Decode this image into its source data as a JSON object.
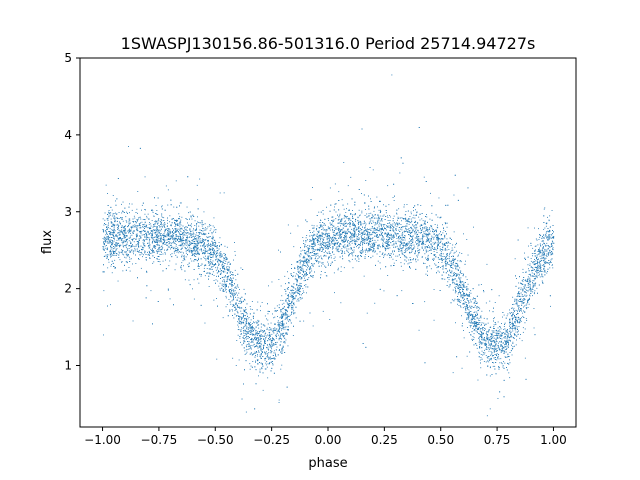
{
  "chart_data": {
    "type": "scatter",
    "title": "1SWASPJ130156.86-501316.0 Period 25714.94727s",
    "xlabel": "phase",
    "ylabel": "flux",
    "xlim": [
      -1.1,
      1.1
    ],
    "ylim": [
      0.2,
      5.0
    ],
    "x_ticks": [
      {
        "value": -1.0,
        "label": "−1.00"
      },
      {
        "value": -0.75,
        "label": "−0.75"
      },
      {
        "value": -0.5,
        "label": "−0.50"
      },
      {
        "value": -0.25,
        "label": "−0.25"
      },
      {
        "value": 0.0,
        "label": "0.00"
      },
      {
        "value": 0.25,
        "label": "0.25"
      },
      {
        "value": 0.5,
        "label": "0.50"
      },
      {
        "value": 0.75,
        "label": "0.75"
      },
      {
        "value": 1.0,
        "label": "1.00"
      }
    ],
    "y_ticks": [
      {
        "value": 1,
        "label": "1"
      },
      {
        "value": 2,
        "label": "2"
      },
      {
        "value": 3,
        "label": "3"
      },
      {
        "value": 4,
        "label": "4"
      },
      {
        "value": 5,
        "label": "5"
      }
    ],
    "series": [
      {
        "color": "#1f77b4",
        "x": [
          -1.0,
          -0.9,
          -0.8,
          -0.7,
          -0.6,
          -0.5,
          -0.45,
          -0.4,
          -0.35,
          -0.3,
          -0.25,
          -0.2,
          -0.15,
          -0.1,
          -0.05,
          0.0,
          0.1,
          0.2,
          0.3,
          0.4,
          0.5,
          0.55,
          0.6,
          0.65,
          0.7,
          0.75,
          0.8,
          0.85,
          0.9,
          0.95,
          1.0
        ],
        "y": [
          2.65,
          2.68,
          2.7,
          2.68,
          2.65,
          2.45,
          2.15,
          1.75,
          1.4,
          1.25,
          1.3,
          1.55,
          1.95,
          2.35,
          2.6,
          2.67,
          2.7,
          2.72,
          2.7,
          2.68,
          2.55,
          2.3,
          1.95,
          1.55,
          1.3,
          1.25,
          1.4,
          1.75,
          2.15,
          2.45,
          2.65
        ]
      }
    ],
    "grid": false,
    "legend": "none"
  }
}
